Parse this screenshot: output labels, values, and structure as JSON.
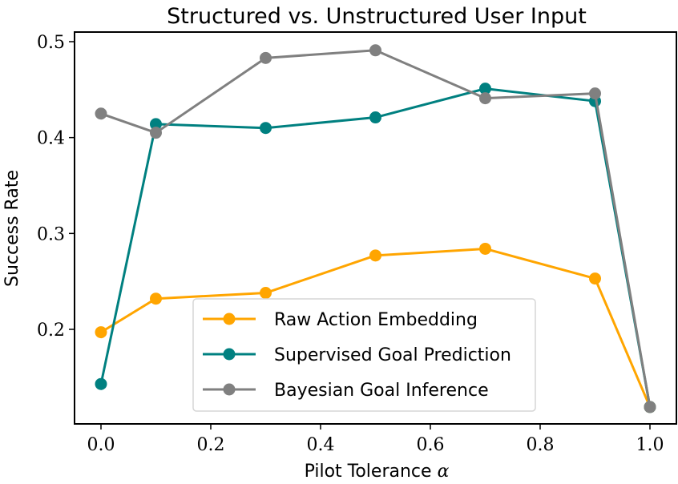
{
  "chart_data": {
    "type": "line",
    "title": "Structured vs. Unstructured User Input",
    "xlabel": "Pilot Tolerance",
    "xlabel_symbol": "α",
    "ylabel": "Success Rate",
    "xlim": [
      -0.045,
      1.05
    ],
    "ylim": [
      0.108,
      0.51
    ],
    "xticks": [
      0.0,
      0.2,
      0.4,
      0.6,
      0.8,
      1.0
    ],
    "xtick_labels": [
      "0.0",
      "0.2",
      "0.4",
      "0.6",
      "0.8",
      "1.0"
    ],
    "yticks": [
      0.2,
      0.3,
      0.4,
      0.5
    ],
    "ytick_labels": [
      "0.2",
      "0.3",
      "0.4",
      "0.5"
    ],
    "grid": false,
    "legend_position": "lower-center",
    "x": [
      0.0,
      0.1,
      0.3,
      0.5,
      0.7,
      0.9,
      1.0
    ],
    "series": [
      {
        "name": "Raw Action Embedding",
        "color": "#FFA500",
        "values": [
          0.197,
          0.232,
          0.238,
          0.277,
          0.284,
          0.253,
          0.119
        ]
      },
      {
        "name": "Supervised Goal Prediction",
        "color": "#008080",
        "values": [
          0.143,
          0.414,
          0.41,
          0.421,
          0.451,
          0.438,
          0.119
        ]
      },
      {
        "name": "Bayesian Goal Inference",
        "color": "#808080",
        "values": [
          0.425,
          0.405,
          0.483,
          0.491,
          0.441,
          0.446,
          0.119
        ]
      }
    ]
  }
}
